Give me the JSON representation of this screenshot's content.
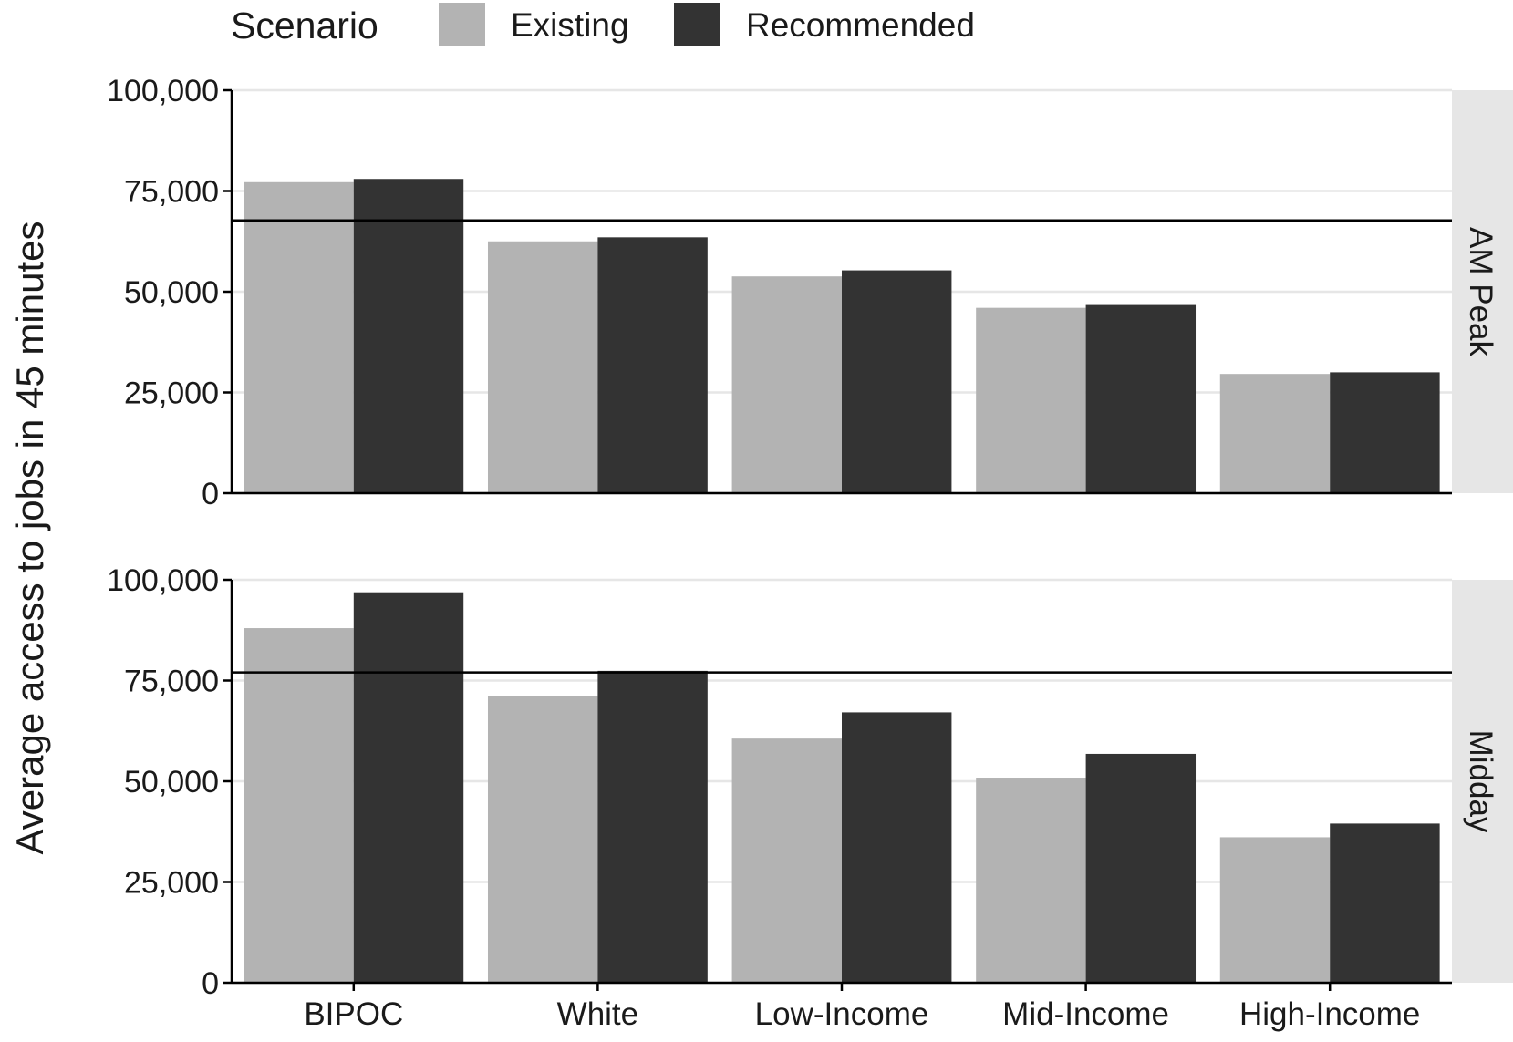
{
  "chart_data": {
    "type": "bar",
    "ylabel": "Average access to jobs in 45 minutes",
    "categories": [
      "BIPOC",
      "White",
      "Low-Income",
      "Mid-Income",
      "High-Income"
    ],
    "ylim": [
      0,
      100000
    ],
    "yticks": [
      0,
      25000,
      50000,
      75000,
      100000
    ],
    "ytick_labels": [
      "0",
      "25,000",
      "50,000",
      "75,000",
      "100,000"
    ],
    "grid": true,
    "legend": {
      "title": "Scenario",
      "position": "top",
      "entries": [
        {
          "name": "Existing",
          "color": "#b3b3b3"
        },
        {
          "name": "Recommended",
          "color": "#333333"
        }
      ]
    },
    "panels": [
      {
        "label": "AM Peak",
        "reference_line": 67700,
        "series": [
          {
            "name": "Existing",
            "values": [
              77200,
              62500,
              53800,
              46000,
              29600
            ]
          },
          {
            "name": "Recommended",
            "values": [
              78000,
              63500,
              55300,
              46700,
              30000
            ]
          }
        ]
      },
      {
        "label": "Midday",
        "reference_line": 77000,
        "series": [
          {
            "name": "Existing",
            "values": [
              88000,
              71100,
              60600,
              50900,
              36100
            ]
          },
          {
            "name": "Recommended",
            "values": [
              96900,
              77400,
              67100,
              56800,
              39500
            ]
          }
        ]
      }
    ]
  }
}
